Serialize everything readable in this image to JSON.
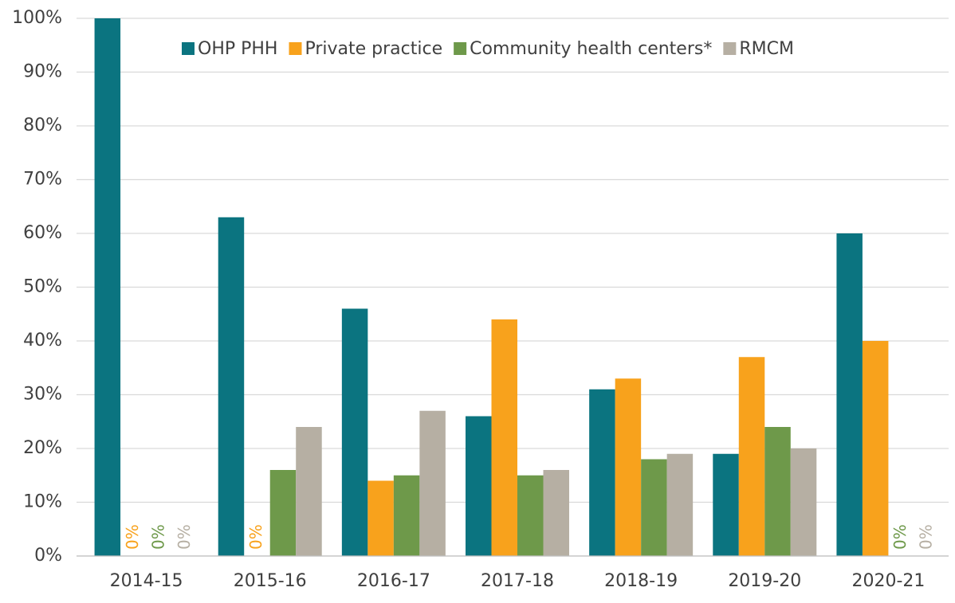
{
  "chart_data": {
    "type": "bar",
    "categories": [
      "2014-15",
      "2015-16",
      "2016-17",
      "2017-18",
      "2018-19",
      "2019-20",
      "2020-21"
    ],
    "series": [
      {
        "name": "OHP PHH",
        "color": "#0b7480",
        "values": [
          100,
          63,
          46,
          26,
          31,
          19,
          60
        ],
        "value_labels": [
          null,
          null,
          null,
          null,
          null,
          null,
          null
        ]
      },
      {
        "name": "Private practice",
        "color": "#f8a21c",
        "values": [
          0,
          0,
          14,
          44,
          33,
          37,
          40
        ],
        "value_labels": [
          "0%",
          "0%",
          null,
          null,
          null,
          null,
          null
        ]
      },
      {
        "name": "Community health centers*",
        "color": "#6e994a",
        "values": [
          0,
          16,
          15,
          15,
          18,
          24,
          0
        ],
        "value_labels": [
          "0%",
          null,
          null,
          null,
          null,
          null,
          "0%"
        ]
      },
      {
        "name": "RMCM",
        "color": "#b6afa3",
        "values": [
          0,
          24,
          27,
          16,
          19,
          20,
          0
        ],
        "value_labels": [
          "0%",
          null,
          null,
          null,
          null,
          null,
          "0%"
        ]
      }
    ],
    "ylim": [
      0,
      100
    ],
    "yticks": [
      {
        "value": 0,
        "label": "0%"
      },
      {
        "value": 10,
        "label": "10%"
      },
      {
        "value": 20,
        "label": "20%"
      },
      {
        "value": 30,
        "label": "30%"
      },
      {
        "value": 40,
        "label": "40%"
      },
      {
        "value": 50,
        "label": "50%"
      },
      {
        "value": 60,
        "label": "60%"
      },
      {
        "value": 70,
        "label": "70%"
      },
      {
        "value": 80,
        "label": "80%"
      },
      {
        "value": 90,
        "label": "90%"
      },
      {
        "value": 100,
        "label": "100%"
      }
    ],
    "grid": true,
    "legend": "top-right"
  }
}
